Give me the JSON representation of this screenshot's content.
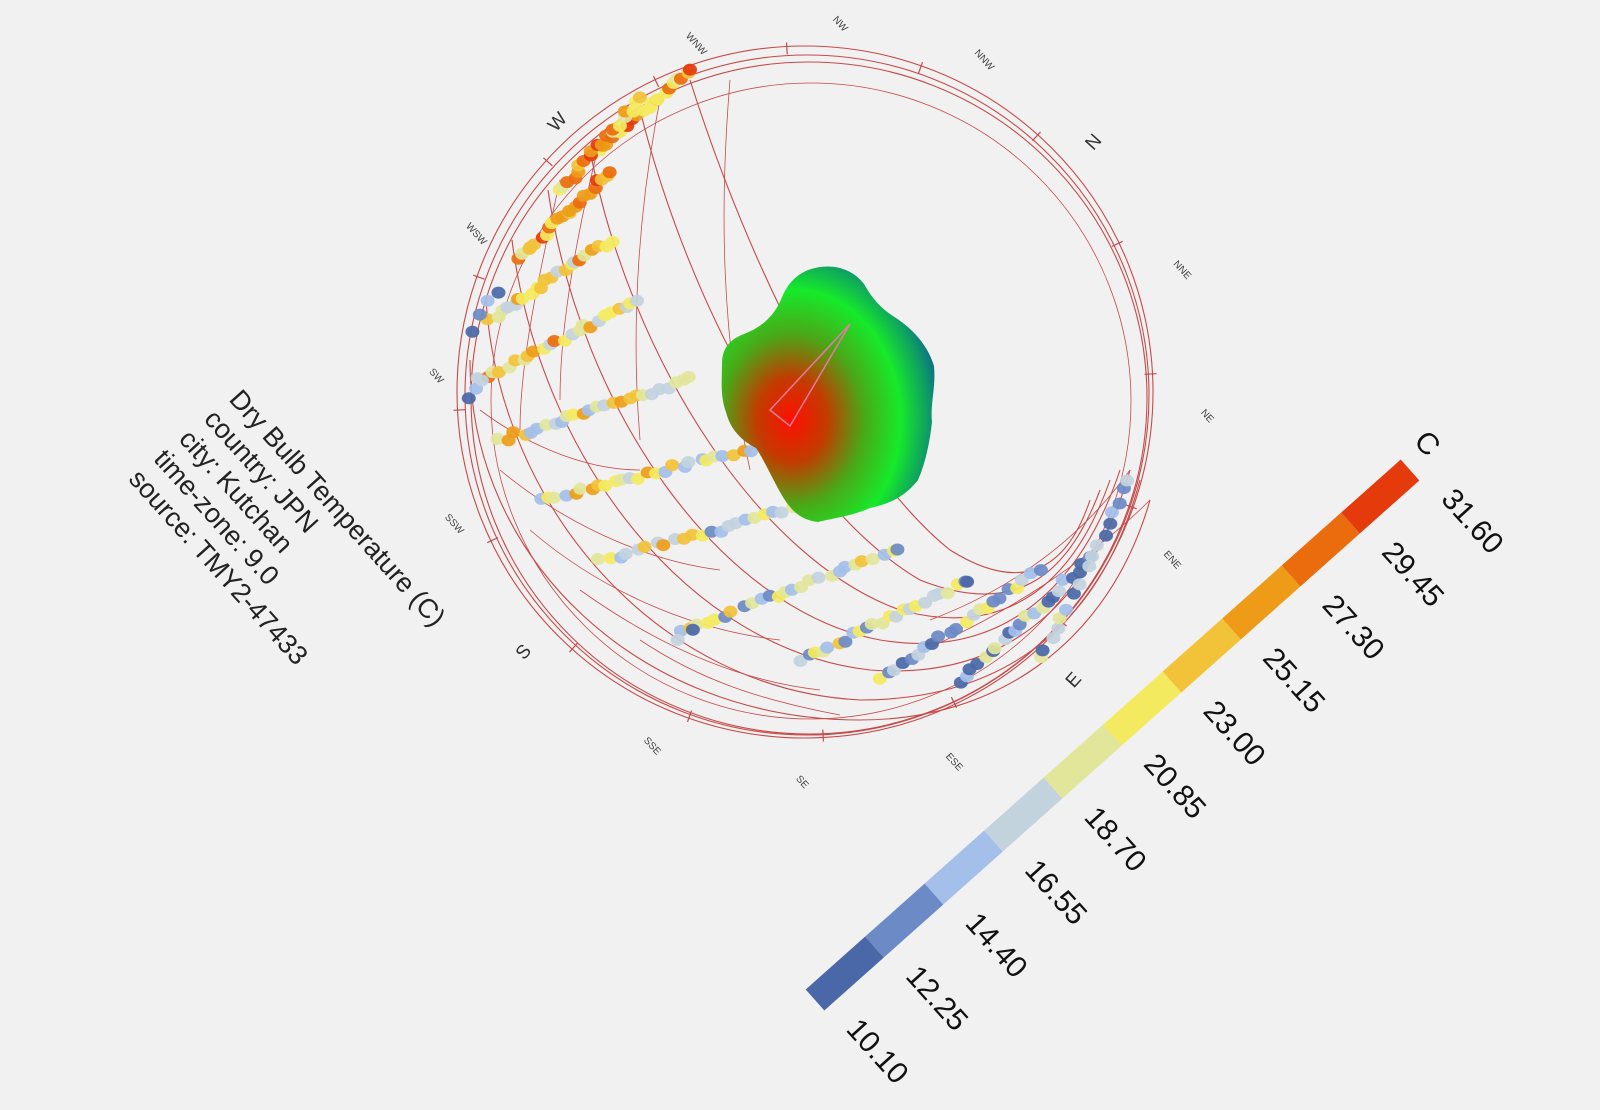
{
  "info": {
    "title": "Dry Bulb Temperature (C)",
    "country": "country: JPN",
    "city": "city: Kutchan",
    "time_zone": "time-zone: 9.0",
    "source": "source: TMY2-47433"
  },
  "compass": {
    "major": [
      "N",
      "E",
      "S",
      "W"
    ],
    "minor": [
      "NNE",
      "NE",
      "ENE",
      "ESE",
      "SE",
      "SSE",
      "SSW",
      "SW",
      "WSW",
      "WNW",
      "NW",
      "NNW"
    ]
  },
  "legend": {
    "unit": "C",
    "ticks": [
      "10.10",
      "12.25",
      "14.40",
      "16.55",
      "18.70",
      "20.85",
      "23.00",
      "25.15",
      "27.30",
      "29.45",
      "31.60"
    ],
    "colors": [
      "#4a68a8",
      "#6b8ac6",
      "#a3bfea",
      "#c2d3de",
      "#e2e69a",
      "#f4ea60",
      "#f2c238",
      "#ee9c18",
      "#ea6c0c",
      "#e53a0c"
    ]
  },
  "sun_path": {
    "color": "#c64a4a"
  },
  "shading_blob": {
    "colors": [
      "#ff1500",
      "#2fe82f",
      "#0c5fa6"
    ]
  }
}
